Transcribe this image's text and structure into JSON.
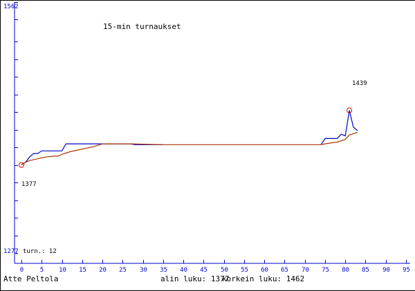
{
  "chart_data": {
    "type": "line",
    "title": "15-min turnaukset",
    "player_name": "Atte Peltola",
    "y_top_label": "1562",
    "y_bottom_label": "1277",
    "games_label": "turn.: 12",
    "min_label": "alin luku: 1377",
    "max_label": "korkein luku: 1462",
    "min_point": {
      "x": 0,
      "y": 1377,
      "label": "1377"
    },
    "peak_point": {
      "x": 81,
      "y": 1439,
      "label": "1439"
    },
    "xlim": [
      0,
      95
    ],
    "ylim": [
      1277,
      1562
    ],
    "x_ticks": [
      0,
      5,
      10,
      15,
      20,
      25,
      30,
      35,
      40,
      45,
      50,
      55,
      60,
      65,
      70,
      75,
      80,
      85,
      90,
      95
    ],
    "y_tick_values": [
      1277,
      1297,
      1317,
      1337,
      1357,
      1377,
      1397,
      1417,
      1437,
      1457,
      1477,
      1497,
      1517,
      1542,
      1562
    ],
    "series": [
      {
        "color": "#0000cc",
        "points": [
          [
            0,
            1377
          ],
          [
            1,
            1380
          ],
          [
            2,
            1386
          ],
          [
            3,
            1390
          ],
          [
            4,
            1390
          ],
          [
            5,
            1393
          ],
          [
            9,
            1393
          ],
          [
            10,
            1393
          ],
          [
            11,
            1401
          ],
          [
            20,
            1401
          ],
          [
            27,
            1401
          ],
          [
            28,
            1400
          ],
          [
            35,
            1400
          ]
        ]
      },
      {
        "color": "#0000cc",
        "points": [
          [
            74,
            1400
          ],
          [
            75,
            1407
          ],
          [
            78,
            1407
          ],
          [
            79,
            1412
          ],
          [
            80,
            1410
          ],
          [
            81,
            1439
          ],
          [
            82,
            1420
          ],
          [
            83,
            1416
          ]
        ]
      },
      {
        "color": "#aa3300",
        "points": [
          [
            0,
            1377
          ],
          [
            1,
            1380
          ],
          [
            2,
            1382
          ],
          [
            4,
            1384
          ],
          [
            6,
            1386
          ],
          [
            8,
            1387
          ],
          [
            9,
            1387
          ],
          [
            10,
            1389
          ],
          [
            12,
            1392
          ],
          [
            14,
            1394
          ],
          [
            16,
            1396
          ],
          [
            18,
            1398
          ],
          [
            20,
            1401
          ],
          [
            27,
            1401
          ],
          [
            35,
            1400
          ],
          [
            74,
            1400
          ],
          [
            75,
            1401
          ],
          [
            78,
            1403
          ],
          [
            80,
            1406
          ],
          [
            81,
            1411
          ],
          [
            83,
            1414
          ]
        ]
      }
    ]
  }
}
